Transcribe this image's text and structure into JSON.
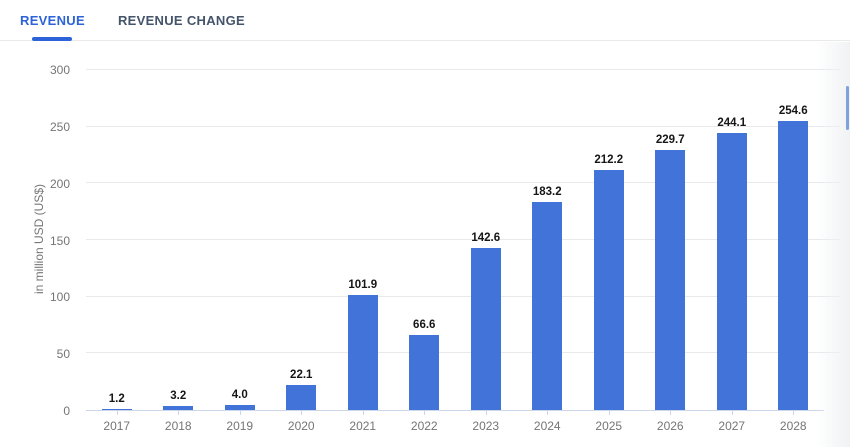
{
  "tabs": [
    {
      "label": "REVENUE",
      "active": true
    },
    {
      "label": "REVENUE CHANGE",
      "active": false
    }
  ],
  "colors": {
    "accent": "#2d63d8",
    "bar": "#4173d8",
    "axis_line": "#ccd6eb",
    "gridline": "#e9e9ec",
    "tick_label": "#757575",
    "value_label": "#161616",
    "inactive_tab": "#44546b",
    "scrollbar_thumb": "#7fa2dc"
  },
  "chart_data": {
    "type": "bar",
    "title": "",
    "xlabel": "",
    "ylabel": "in million USD (US$)",
    "categories": [
      "2017",
      "2018",
      "2019",
      "2020",
      "2021",
      "2022",
      "2023",
      "2024",
      "2025",
      "2026",
      "2027",
      "2028"
    ],
    "values": [
      1.2,
      3.2,
      4.0,
      22.1,
      101.9,
      66.6,
      142.6,
      183.2,
      212.2,
      229.7,
      244.1,
      254.6
    ],
    "value_labels": [
      "1.2",
      "3.2",
      "4.0",
      "22.1",
      "101.9",
      "66.6",
      "142.6",
      "183.2",
      "212.2",
      "229.7",
      "244.1",
      "254.6"
    ],
    "ylim": [
      0,
      300
    ],
    "ytick_step": 50,
    "yticks": [
      0,
      50,
      100,
      150,
      200,
      250,
      300
    ],
    "grid": true,
    "legend": false,
    "value_labels_shown": true
  }
}
